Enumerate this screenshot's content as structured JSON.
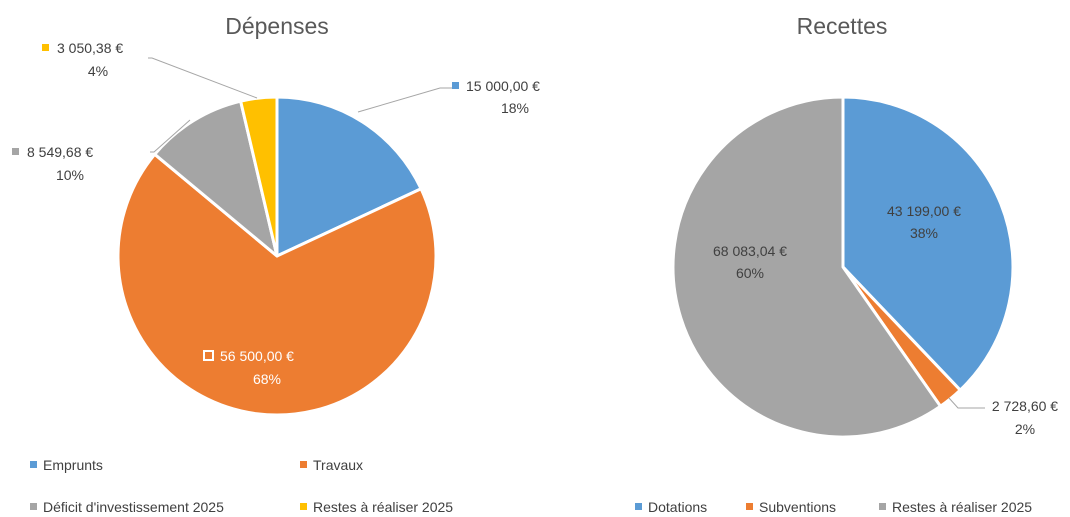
{
  "chart_data": [
    {
      "type": "pie",
      "title": "Dépenses",
      "slices": [
        {
          "name": "Emprunts",
          "value": 15000.0,
          "label": "15 000,00 €",
          "percent": "18%",
          "color": "#5B9BD5"
        },
        {
          "name": "Travaux",
          "value": 56500.0,
          "label": "56 500,00 €",
          "percent": "68%",
          "color": "#ED7D31"
        },
        {
          "name": "Déficit d'investissement 2025",
          "value": 8549.68,
          "label": "8 549,68 €",
          "percent": "10%",
          "color": "#A5A5A5"
        },
        {
          "name": "Restes à réaliser 2025",
          "value": 3050.38,
          "label": "3 050,38 €",
          "percent": "4%",
          "color": "#FFC000"
        }
      ],
      "legend": [
        "Emprunts",
        "Travaux",
        "Déficit d'investissement 2025",
        "Restes à réaliser 2025"
      ],
      "legend_position": "bottom"
    },
    {
      "type": "pie",
      "title": "Recettes",
      "slices": [
        {
          "name": "Dotations",
          "value": 43199.0,
          "label": "43 199,00 €",
          "percent": "38%",
          "color": "#5B9BD5"
        },
        {
          "name": "Subventions",
          "value": 2728.6,
          "label": "2 728,60 €",
          "percent": "2%",
          "color": "#ED7D31"
        },
        {
          "name": "Restes à réaliser 2025",
          "value": 68083.04,
          "label": "68 083,04 €",
          "percent": "60%",
          "color": "#A5A5A5"
        }
      ],
      "legend": [
        "Dotations",
        "Subventions",
        "Restes à réaliser 2025"
      ],
      "legend_position": "bottom"
    }
  ]
}
